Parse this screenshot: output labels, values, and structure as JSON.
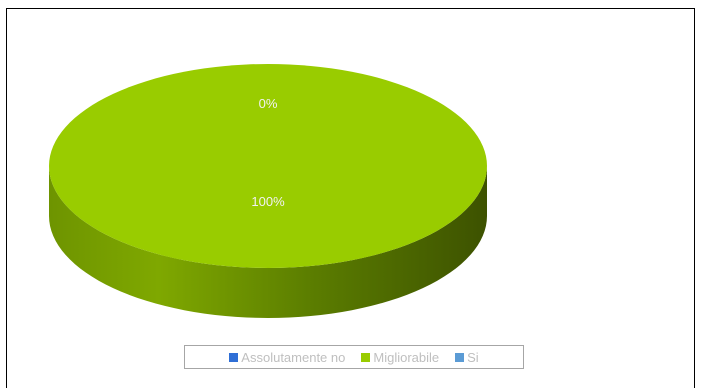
{
  "chart_data": {
    "type": "pie",
    "categories": [
      "Assolutamente no",
      "Migliorabile",
      "Si"
    ],
    "values": [
      0,
      100,
      0
    ],
    "data_labels": [
      "",
      "100%",
      "0%"
    ],
    "colors": [
      "#2f6fd6",
      "#99cc00",
      "#5b9bd5"
    ],
    "title": "",
    "legend": "bottom",
    "style": "3d"
  },
  "legend": {
    "items": [
      {
        "label": "Assolutamente no",
        "color": "#2f6fd6"
      },
      {
        "label": "Migliorabile",
        "color": "#99cc00"
      },
      {
        "label": "Si",
        "color": "#5b9bd5"
      }
    ]
  }
}
